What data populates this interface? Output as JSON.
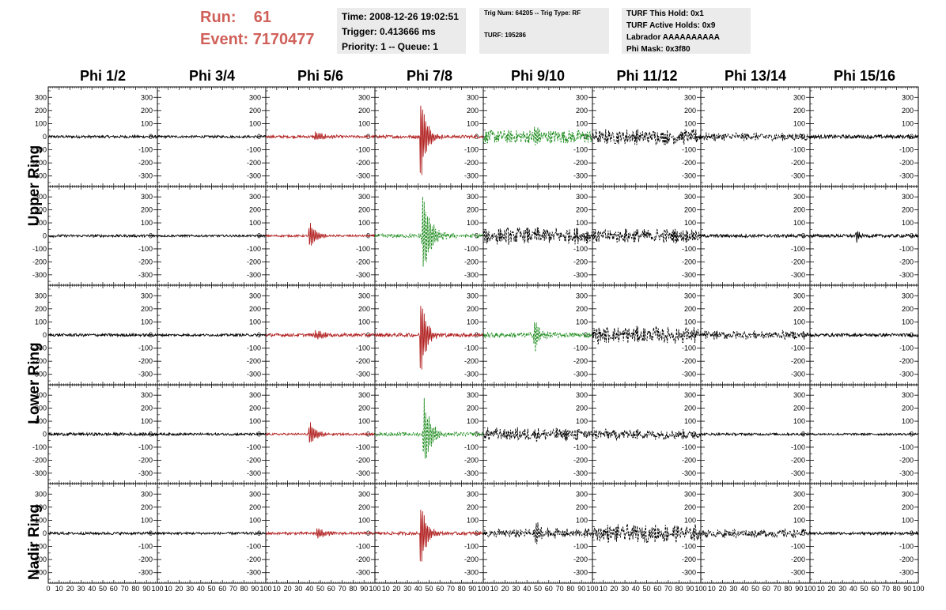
{
  "run_info": {
    "run_label": "Run:",
    "run_value": "61",
    "event_label": "Event:",
    "event_value": "7170477"
  },
  "time_box": {
    "time": "Time: 2008-12-26 19:02:51",
    "trigger": "Trigger: 0.413666 ms",
    "priority": "Priority: 1 -- Queue: 1"
  },
  "trig_box": {
    "trig_line": "Trig Num: 64205 -- Trig Type: RF",
    "turf_line": "TURF: 195286"
  },
  "turf_box": {
    "hold": "TURF This Hold: 0x1",
    "active": "TURF Active Holds: 0x9",
    "labrador": "Labrador AAAAAAAAAA",
    "phimask": "Phi Mask: 0x3f80"
  },
  "colors": {
    "run_text": "#d0605a",
    "info_bg": "#ebebeb",
    "trace_black": "#000000",
    "trace_red": "#b22222",
    "trace_green": "#1e8c1e"
  },
  "chart_data": {
    "type": "line",
    "columns": [
      "Phi 1/2",
      "Phi 3/4",
      "Phi 5/6",
      "Phi 7/8",
      "Phi 9/10",
      "Phi 11/12",
      "Phi 13/14",
      "Phi 15/16"
    ],
    "row_groups": [
      {
        "label": "Upper Ring",
        "rows": [
          0,
          1
        ]
      },
      {
        "label": "Lower Ring",
        "rows": [
          2,
          3
        ]
      },
      {
        "label": "Nadir Ring",
        "rows": [
          4
        ]
      }
    ],
    "ylim": [
      -380,
      380
    ],
    "yticks": [
      -300,
      -200,
      -100,
      0,
      100,
      200,
      300
    ],
    "ytick_labels": [
      "-300",
      "-200",
      "-100",
      "0",
      "100",
      "200",
      "300"
    ],
    "xlim": [
      0,
      100
    ],
    "xticks": [
      0,
      10,
      20,
      30,
      40,
      50,
      60,
      70,
      80,
      90,
      100
    ],
    "xtick_labels": [
      "0",
      "10",
      "20",
      "30",
      "40",
      "50",
      "60",
      "70",
      "80",
      "90",
      "100"
    ],
    "panels": [
      [
        {
          "style": "black",
          "noise": 10,
          "peak": 0,
          "center": 0,
          "width": 0,
          "dense": 0
        },
        {
          "style": "black",
          "noise": 9,
          "peak": 0,
          "center": 0,
          "width": 0,
          "dense": 0
        },
        {
          "style": "red",
          "noise": 10,
          "peak": 40,
          "center": 45,
          "width": 8,
          "dense": 0
        },
        {
          "style": "red",
          "noise": 12,
          "peak": 360,
          "center": 42,
          "width": 5,
          "dense": 0
        },
        {
          "style": "green",
          "noise": 50,
          "peak": 130,
          "center": 47,
          "width": 2,
          "dense": 0
        },
        {
          "style": "blackdash",
          "noise": 65,
          "peak": 0,
          "center": 0,
          "width": 0,
          "dense": 1
        },
        {
          "style": "blackdash",
          "noise": 35,
          "peak": 0,
          "center": 0,
          "width": 0,
          "dense": 1
        },
        {
          "style": "black",
          "noise": 14,
          "peak": 0,
          "center": 0,
          "width": 0,
          "dense": 0
        }
      ],
      [
        {
          "style": "black",
          "noise": 10,
          "peak": 0,
          "center": 0,
          "width": 0,
          "dense": 0
        },
        {
          "style": "black",
          "noise": 8,
          "peak": 0,
          "center": 0,
          "width": 0,
          "dense": 0
        },
        {
          "style": "red",
          "noise": 8,
          "peak": 110,
          "center": 40,
          "width": 6,
          "dense": 0
        },
        {
          "style": "green",
          "noise": 15,
          "peak": 340,
          "center": 44,
          "width": 7,
          "dense": 0
        },
        {
          "style": "blackdash",
          "noise": 70,
          "peak": 0,
          "center": 0,
          "width": 0,
          "dense": 1
        },
        {
          "style": "blackdash",
          "noise": 60,
          "peak": 0,
          "center": 0,
          "width": 0,
          "dense": 1
        },
        {
          "style": "black",
          "noise": 12,
          "peak": 0,
          "center": 0,
          "width": 0,
          "dense": 0
        },
        {
          "style": "black",
          "noise": 12,
          "peak": 60,
          "center": 43,
          "width": 2,
          "dense": 0
        }
      ],
      [
        {
          "style": "black",
          "noise": 11,
          "peak": 0,
          "center": 0,
          "width": 0,
          "dense": 0
        },
        {
          "style": "black",
          "noise": 9,
          "peak": 0,
          "center": 0,
          "width": 0,
          "dense": 0
        },
        {
          "style": "red",
          "noise": 12,
          "peak": 40,
          "center": 45,
          "width": 8,
          "dense": 0
        },
        {
          "style": "red",
          "noise": 14,
          "peak": 350,
          "center": 42,
          "width": 5,
          "dense": 0
        },
        {
          "style": "green",
          "noise": 20,
          "peak": 150,
          "center": 47,
          "width": 4,
          "dense": 0
        },
        {
          "style": "blackdash",
          "noise": 70,
          "peak": 0,
          "center": 0,
          "width": 0,
          "dense": 1
        },
        {
          "style": "blackdash",
          "noise": 35,
          "peak": 0,
          "center": 0,
          "width": 0,
          "dense": 1
        },
        {
          "style": "black",
          "noise": 12,
          "peak": 0,
          "center": 0,
          "width": 0,
          "dense": 0
        }
      ],
      [
        {
          "style": "black",
          "noise": 11,
          "peak": 0,
          "center": 0,
          "width": 0,
          "dense": 0
        },
        {
          "style": "black",
          "noise": 9,
          "peak": 0,
          "center": 0,
          "width": 0,
          "dense": 0
        },
        {
          "style": "red",
          "noise": 8,
          "peak": 100,
          "center": 40,
          "width": 6,
          "dense": 0
        },
        {
          "style": "green",
          "noise": 14,
          "peak": 300,
          "center": 45,
          "width": 6,
          "dense": 0
        },
        {
          "style": "blackdash",
          "noise": 55,
          "peak": 0,
          "center": 0,
          "width": 0,
          "dense": 1
        },
        {
          "style": "blackdash",
          "noise": 45,
          "peak": 0,
          "center": 0,
          "width": 0,
          "dense": 1
        },
        {
          "style": "black",
          "noise": 9,
          "peak": 0,
          "center": 0,
          "width": 0,
          "dense": 0
        },
        {
          "style": "black",
          "noise": 8,
          "peak": 0,
          "center": 0,
          "width": 0,
          "dense": 0
        }
      ],
      [
        {
          "style": "black",
          "noise": 10,
          "peak": 0,
          "center": 0,
          "width": 0,
          "dense": 0
        },
        {
          "style": "black",
          "noise": 9,
          "peak": 0,
          "center": 0,
          "width": 0,
          "dense": 0
        },
        {
          "style": "red",
          "noise": 10,
          "peak": 50,
          "center": 47,
          "width": 7,
          "dense": 0
        },
        {
          "style": "red",
          "noise": 12,
          "peak": 290,
          "center": 42,
          "width": 5,
          "dense": 0
        },
        {
          "style": "blackdash",
          "noise": 40,
          "peak": 120,
          "center": 48,
          "width": 5,
          "dense": 1
        },
        {
          "style": "blackdash",
          "noise": 75,
          "peak": 0,
          "center": 0,
          "width": 0,
          "dense": 1
        },
        {
          "style": "blackdash",
          "noise": 35,
          "peak": 0,
          "center": 0,
          "width": 0,
          "dense": 1
        },
        {
          "style": "black",
          "noise": 10,
          "peak": 0,
          "center": 0,
          "width": 0,
          "dense": 0
        }
      ]
    ]
  }
}
